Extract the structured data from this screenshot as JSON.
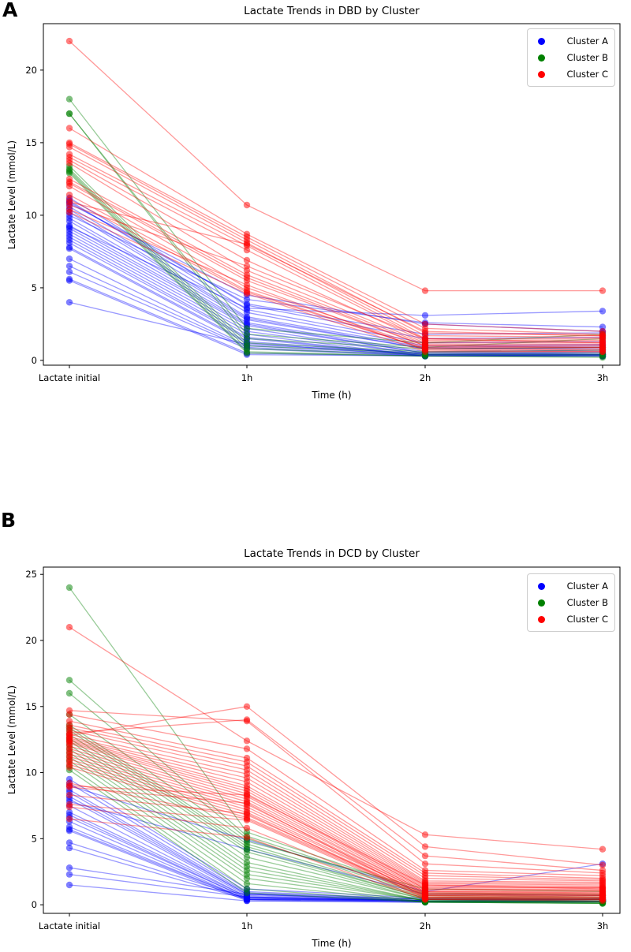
{
  "figure": {
    "background_color": "#ffffff",
    "text_color": "#000000",
    "spine_color": "#000000"
  },
  "chart_data": [
    {
      "panel_label": "A",
      "type": "line",
      "title": "Lactate Trends in DBD by Cluster",
      "xlabel": "Time (h)",
      "ylabel": "Lactate Level (mmol/L)",
      "x_categories": [
        "Lactate initial",
        "1h",
        "2h",
        "3h"
      ],
      "yticks": [
        0,
        5,
        10,
        15,
        20
      ],
      "ylim": [
        -0.33,
        23.2
      ],
      "grid": false,
      "legend_position": "upper right",
      "legend": [
        {
          "label": "Cluster A",
          "color": "#0000ff"
        },
        {
          "label": "Cluster B",
          "color": "#008000"
        },
        {
          "label": "Cluster C",
          "color": "#ff0000"
        }
      ],
      "series": [
        {
          "name": "Cluster A",
          "color": "#0000ff",
          "lines": [
            [
              11.2,
              3.8,
              1.5,
              1.6
            ],
            [
              11.0,
              3.5,
              1.2,
              1.3
            ],
            [
              10.9,
              3.9,
              1.8,
              1.9
            ],
            [
              10.8,
              4.5,
              2.5,
              2.0
            ],
            [
              10.6,
              3.3,
              1.0,
              1.1
            ],
            [
              10.4,
              3.0,
              0.9,
              1.0
            ],
            [
              10.2,
              2.9,
              0.8,
              0.9
            ],
            [
              10.0,
              4.2,
              2.6,
              2.3
            ],
            [
              9.8,
              2.8,
              0.8,
              0.8
            ],
            [
              9.6,
              2.6,
              0.6,
              0.7
            ],
            [
              9.3,
              2.5,
              0.5,
              0.6
            ],
            [
              9.2,
              3.6,
              3.1,
              3.4
            ],
            [
              9.1,
              2.4,
              0.5,
              0.5
            ],
            [
              8.9,
              2.2,
              0.4,
              0.5
            ],
            [
              8.7,
              2.0,
              0.4,
              0.4
            ],
            [
              8.5,
              1.8,
              0.3,
              0.4
            ],
            [
              8.3,
              1.6,
              0.3,
              0.3
            ],
            [
              8.1,
              1.5,
              0.3,
              0.3
            ],
            [
              7.8,
              1.3,
              0.4,
              0.3
            ],
            [
              7.7,
              1.2,
              0.3,
              0.3
            ],
            [
              7.0,
              1.0,
              0.4,
              0.4
            ],
            [
              6.5,
              0.9,
              0.3,
              0.3
            ],
            [
              6.1,
              0.8,
              0.3,
              0.3
            ],
            [
              5.6,
              0.5,
              0.3,
              0.3
            ],
            [
              5.5,
              0.4,
              0.3,
              0.3
            ],
            [
              4.0,
              1.1,
              0.5,
              0.4
            ]
          ]
        },
        {
          "name": "Cluster B",
          "color": "#008000",
          "lines": [
            [
              18.0,
              2.2,
              1.2,
              1.8
            ],
            [
              17.0,
              1.8,
              0.9,
              1.5
            ],
            [
              17.0,
              1.5,
              0.8,
              0.9
            ],
            [
              13.4,
              1.2,
              0.6,
              0.7
            ],
            [
              13.2,
              1.0,
              0.5,
              0.5
            ],
            [
              13.1,
              0.8,
              0.4,
              0.4
            ],
            [
              13.0,
              0.6,
              0.3,
              0.3
            ],
            [
              12.9,
              0.5,
              0.3,
              0.2
            ]
          ]
        },
        {
          "name": "Cluster C",
          "color": "#ff0000",
          "lines": [
            [
              22.0,
              10.7,
              4.8,
              4.8
            ],
            [
              16.0,
              8.7,
              2.5,
              2.0
            ],
            [
              15.0,
              8.5,
              2.2,
              1.8
            ],
            [
              14.9,
              8.3,
              1.9,
              1.7
            ],
            [
              14.7,
              8.1,
              1.7,
              1.6
            ],
            [
              14.2,
              7.9,
              1.5,
              1.5
            ],
            [
              14.0,
              7.6,
              1.4,
              1.4
            ],
            [
              13.8,
              6.9,
              1.3,
              1.3
            ],
            [
              13.6,
              6.2,
              1.2,
              1.2
            ],
            [
              12.5,
              5.9,
              1.1,
              1.1
            ],
            [
              12.3,
              5.7,
              1.0,
              1.0
            ],
            [
              12.2,
              5.5,
              1.0,
              0.9
            ],
            [
              12.0,
              5.0,
              0.9,
              0.9
            ],
            [
              11.4,
              4.8,
              0.8,
              0.8
            ],
            [
              11.1,
              4.7,
              0.8,
              0.7
            ],
            [
              10.9,
              8.0,
              2.0,
              1.7
            ],
            [
              10.7,
              6.5,
              1.5,
              1.2
            ],
            [
              10.4,
              5.2,
              0.7,
              0.6
            ],
            [
              10.2,
              4.6,
              0.6,
              0.6
            ]
          ]
        }
      ]
    },
    {
      "panel_label": "B",
      "type": "line",
      "title": "Lactate Trends in DCD by Cluster",
      "xlabel": "Time (h)",
      "ylabel": "Lactate Level (mmol/L)",
      "x_categories": [
        "Lactate initial",
        "1h",
        "2h",
        "3h"
      ],
      "yticks": [
        0,
        5,
        10,
        15,
        20,
        25
      ],
      "ylim": [
        -0.65,
        25.55
      ],
      "grid": false,
      "legend_position": "upper right",
      "legend": [
        {
          "label": "Cluster A",
          "color": "#0000ff"
        },
        {
          "label": "Cluster B",
          "color": "#008000"
        },
        {
          "label": "Cluster C",
          "color": "#ff0000"
        }
      ],
      "series": [
        {
          "name": "Cluster A",
          "color": "#0000ff",
          "lines": [
            [
              9.5,
              1.2,
              0.5,
              0.5
            ],
            [
              9.2,
              1.0,
              0.4,
              0.4
            ],
            [
              9.0,
              4.9,
              1.0,
              3.1
            ],
            [
              8.7,
              0.9,
              0.4,
              0.4
            ],
            [
              8.5,
              0.8,
              0.3,
              0.4
            ],
            [
              8.2,
              0.8,
              0.3,
              0.3
            ],
            [
              8.0,
              0.7,
              0.3,
              0.3
            ],
            [
              7.8,
              4.2,
              0.8,
              0.7
            ],
            [
              7.5,
              0.6,
              0.3,
              0.3
            ],
            [
              7.0,
              0.6,
              0.3,
              0.3
            ],
            [
              6.8,
              0.5,
              0.3,
              0.3
            ],
            [
              6.6,
              0.5,
              0.3,
              0.3
            ],
            [
              6.3,
              0.4,
              0.3,
              0.3
            ],
            [
              5.9,
              0.4,
              0.3,
              0.3
            ],
            [
              5.7,
              0.4,
              0.2,
              0.3
            ],
            [
              5.6,
              0.3,
              0.2,
              0.2
            ],
            [
              4.7,
              0.5,
              0.3,
              0.3
            ],
            [
              4.3,
              0.4,
              0.3,
              0.3
            ],
            [
              2.8,
              0.8,
              0.4,
              0.4
            ],
            [
              2.3,
              0.6,
              0.3,
              0.3
            ],
            [
              1.5,
              0.3,
              0.2,
              0.2
            ]
          ]
        },
        {
          "name": "Cluster B",
          "color": "#008000",
          "lines": [
            [
              24.0,
              5.5,
              0.9,
              0.8
            ],
            [
              17.0,
              5.2,
              0.8,
              0.7
            ],
            [
              16.0,
              5.0,
              0.7,
              0.6
            ],
            [
              14.4,
              4.8,
              1.2,
              1.0
            ],
            [
              13.6,
              4.6,
              0.6,
              0.5
            ],
            [
              13.4,
              4.4,
              0.5,
              0.5
            ],
            [
              13.2,
              4.2,
              0.5,
              0.4
            ],
            [
              12.9,
              4.0,
              0.4,
              0.4
            ],
            [
              12.6,
              3.6,
              0.4,
              0.3
            ],
            [
              12.4,
              3.2,
              0.3,
              0.3
            ],
            [
              12.1,
              2.9,
              0.3,
              0.3
            ],
            [
              11.8,
              2.6,
              0.3,
              0.2
            ],
            [
              11.5,
              2.3,
              0.3,
              0.2
            ],
            [
              11.2,
              2.0,
              0.2,
              0.2
            ],
            [
              10.9,
              1.6,
              0.2,
              0.1
            ],
            [
              10.5,
              1.2,
              0.2,
              0.1
            ],
            [
              10.2,
              0.9,
              0.2,
              0.1
            ]
          ]
        },
        {
          "name": "Cluster C",
          "color": "#ff0000",
          "lines": [
            [
              21.0,
              12.4,
              5.3,
              4.2
            ],
            [
              12.8,
              15.0,
              4.4,
              3.0
            ],
            [
              13.0,
              14.0,
              3.7,
              2.6
            ],
            [
              14.7,
              13.9,
              3.1,
              2.4
            ],
            [
              14.4,
              11.8,
              2.6,
              2.2
            ],
            [
              13.9,
              11.1,
              2.4,
              2.0
            ],
            [
              13.6,
              10.8,
              2.2,
              1.9
            ],
            [
              13.4,
              10.5,
              2.0,
              1.8
            ],
            [
              13.2,
              10.2,
              1.8,
              1.7
            ],
            [
              12.9,
              9.9,
              1.7,
              1.6
            ],
            [
              12.7,
              9.6,
              1.6,
              1.5
            ],
            [
              12.6,
              9.3,
              1.5,
              1.4
            ],
            [
              12.5,
              9.0,
              1.4,
              1.3
            ],
            [
              12.4,
              8.8,
              1.3,
              1.3
            ],
            [
              12.3,
              8.6,
              1.2,
              1.2
            ],
            [
              12.2,
              8.4,
              1.2,
              1.1
            ],
            [
              12.0,
              8.2,
              1.1,
              1.1
            ],
            [
              11.8,
              8.0,
              1.0,
              1.0
            ],
            [
              11.6,
              7.8,
              1.0,
              0.9
            ],
            [
              11.4,
              7.6,
              0.9,
              0.9
            ],
            [
              11.2,
              7.4,
              0.9,
              0.8
            ],
            [
              11.0,
              7.2,
              0.8,
              0.8
            ],
            [
              10.8,
              7.0,
              0.8,
              0.7
            ],
            [
              10.6,
              6.8,
              0.7,
              0.7
            ],
            [
              10.4,
              6.6,
              0.7,
              0.6
            ],
            [
              9.2,
              6.5,
              0.6,
              0.6
            ],
            [
              9.0,
              8.3,
              1.5,
              1.2
            ],
            [
              8.9,
              7.7,
              0.6,
              0.5
            ],
            [
              8.3,
              6.9,
              0.5,
              0.5
            ],
            [
              7.6,
              6.4,
              0.5,
              0.4
            ],
            [
              7.4,
              5.8,
              0.4,
              0.4
            ],
            [
              6.5,
              5.1,
              0.4,
              0.3
            ]
          ]
        }
      ]
    }
  ]
}
